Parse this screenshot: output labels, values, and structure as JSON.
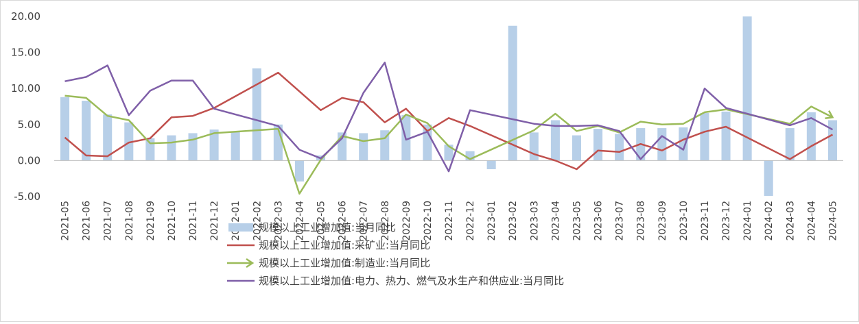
{
  "chart_data": {
    "type": "bar",
    "categories": [
      "2021-05",
      "2021-06",
      "2021-07",
      "2021-08",
      "2021-09",
      "2021-10",
      "2021-11",
      "2021-12",
      "2022-01",
      "2022-02",
      "2022-03",
      "2022-04",
      "2022-05",
      "2022-06",
      "2022-07",
      "2022-08",
      "2022-09",
      "2022-10",
      "2022-11",
      "2022-12",
      "2023-01",
      "2023-02",
      "2023-03",
      "2023-04",
      "2023-05",
      "2023-06",
      "2023-07",
      "2023-08",
      "2023-09",
      "2023-10",
      "2023-11",
      "2023-12",
      "2024-01",
      "2024-02",
      "2024-03",
      "2024-04",
      "2024-05"
    ],
    "ylim": [
      -5,
      20
    ],
    "yticks": [
      "-5.00",
      "0.00",
      "5.00",
      "10.00",
      "15.00",
      "20.00"
    ],
    "grid": false,
    "legend_position": "bottom",
    "series": [
      {
        "name": "规模以上工业增加值:当月同比",
        "type": "bar",
        "color": "#b7cfe8",
        "values": [
          8.8,
          8.3,
          6.4,
          5.3,
          3.1,
          3.5,
          3.8,
          4.3,
          4.0,
          12.8,
          5.0,
          -2.9,
          0.7,
          3.9,
          3.8,
          4.2,
          6.3,
          5.0,
          2.2,
          1.3,
          -1.2,
          18.7,
          3.9,
          5.6,
          3.5,
          4.4,
          3.7,
          4.5,
          4.5,
          4.6,
          6.6,
          6.8,
          20.0,
          -4.9,
          4.5,
          6.7,
          5.6
        ]
      },
      {
        "name": "规模以上工业增加值:采矿业:当月同比",
        "type": "line",
        "color": "#c0504d",
        "values": [
          3.2,
          0.7,
          0.6,
          2.5,
          3.1,
          6.0,
          6.2,
          7.3,
          null,
          null,
          12.2,
          null,
          7.0,
          8.7,
          8.1,
          5.3,
          7.2,
          4.1,
          5.9,
          4.8,
          null,
          null,
          0.9,
          0.0,
          -1.2,
          1.4,
          1.2,
          2.3,
          1.4,
          2.9,
          4.0,
          4.7,
          null,
          null,
          0.2,
          2.0,
          3.6
        ]
      },
      {
        "name": "规模以上工业增加值:制造业:当月同比",
        "type": "line",
        "color": "#9bbb59",
        "values": [
          9.0,
          8.7,
          6.2,
          5.6,
          2.4,
          2.5,
          2.9,
          3.8,
          null,
          null,
          4.4,
          -4.6,
          0.1,
          3.4,
          2.7,
          3.1,
          6.4,
          5.2,
          2.0,
          0.2,
          null,
          null,
          4.2,
          6.5,
          4.1,
          4.8,
          3.9,
          5.4,
          5.0,
          5.1,
          6.7,
          7.1,
          null,
          null,
          5.1,
          7.5,
          6.0
        ]
      },
      {
        "name": "规模以上工业增加值:电力、热力、燃气及水生产和供应业:当月同比",
        "type": "line",
        "color": "#7f5fa8",
        "values": [
          11.0,
          11.6,
          13.2,
          6.3,
          9.7,
          11.1,
          11.1,
          7.2,
          null,
          null,
          4.8,
          1.5,
          0.3,
          3.1,
          9.4,
          13.6,
          2.9,
          4.0,
          -1.5,
          7.0,
          null,
          null,
          5.1,
          4.8,
          4.8,
          4.9,
          4.1,
          0.2,
          3.4,
          1.5,
          10.0,
          7.3,
          null,
          null,
          4.9,
          5.9,
          4.3
        ]
      }
    ]
  }
}
